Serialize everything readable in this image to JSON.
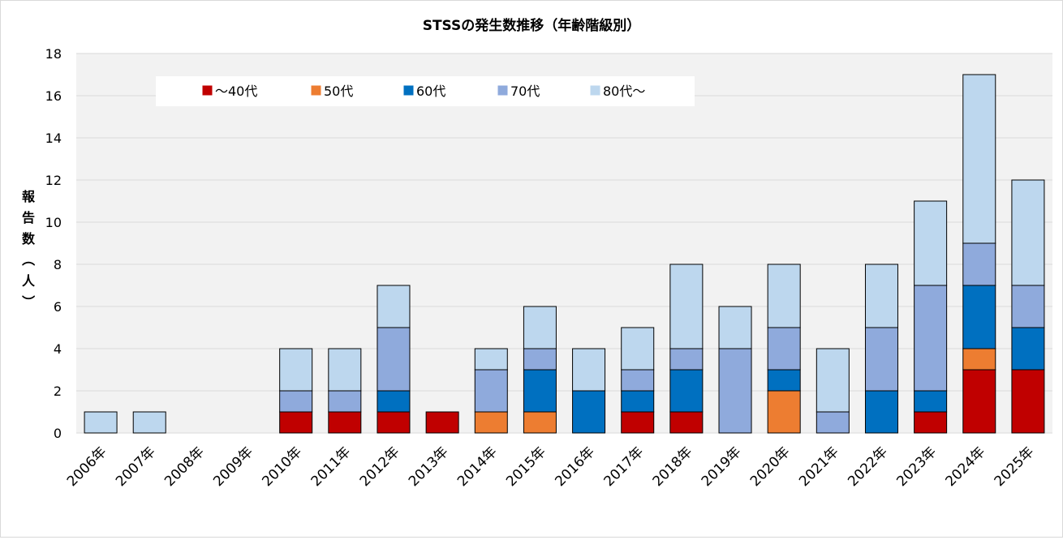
{
  "chart_data": {
    "type": "bar",
    "stacked": true,
    "title": "STSSの発生数推移（年齢階級別）",
    "ylabel": "報告数（人）",
    "xlabel": "",
    "ylim": [
      0,
      18
    ],
    "yticks": [
      0,
      2,
      4,
      6,
      8,
      10,
      12,
      14,
      16,
      18
    ],
    "grid": true,
    "legend_position": "top-left",
    "categories": [
      "2006年",
      "2007年",
      "2008年",
      "2009年",
      "2010年",
      "2011年",
      "2012年",
      "2013年",
      "2014年",
      "2015年",
      "2016年",
      "2017年",
      "2018年",
      "2019年",
      "2020年",
      "2021年",
      "2022年",
      "2023年",
      "2024年",
      "2025年"
    ],
    "series": [
      {
        "name": "～40代",
        "color": "#c00000",
        "values": [
          0,
          0,
          0,
          0,
          1,
          1,
          1,
          1,
          0,
          0,
          0,
          1,
          1,
          0,
          0,
          0,
          0,
          1,
          3,
          3
        ]
      },
      {
        "name": "50代",
        "color": "#ed7d31",
        "values": [
          0,
          0,
          0,
          0,
          0,
          0,
          0,
          0,
          1,
          1,
          0,
          0,
          0,
          0,
          2,
          0,
          0,
          0,
          1,
          0
        ]
      },
      {
        "name": "60代",
        "color": "#0070c0",
        "values": [
          0,
          0,
          0,
          0,
          0,
          0,
          1,
          0,
          0,
          2,
          2,
          1,
          2,
          0,
          1,
          0,
          2,
          1,
          3,
          2
        ]
      },
      {
        "name": "70代",
        "color": "#8faadc",
        "values": [
          0,
          0,
          0,
          0,
          1,
          1,
          3,
          0,
          2,
          1,
          0,
          1,
          1,
          4,
          2,
          1,
          3,
          5,
          2,
          2
        ]
      },
      {
        "name": "80代～",
        "color": "#bdd7ee",
        "values": [
          1,
          1,
          0,
          0,
          2,
          2,
          2,
          0,
          1,
          2,
          2,
          2,
          4,
          2,
          3,
          3,
          3,
          4,
          8,
          5
        ]
      }
    ]
  }
}
